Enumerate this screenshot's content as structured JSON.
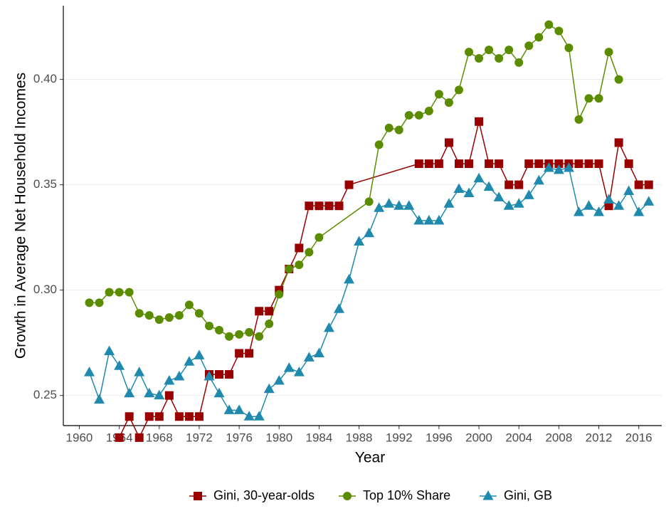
{
  "chart_data": {
    "type": "line",
    "x_label": "Year",
    "y_label": "Growth in Average Net Household Incomes",
    "xlim": [
      1958.4,
      2018.3
    ],
    "xticks": [
      1960,
      1964,
      1968,
      1972,
      1976,
      1980,
      1984,
      1988,
      1992,
      1996,
      2000,
      2004,
      2008,
      2012,
      2016
    ],
    "ylim": [
      0.2357,
      0.435
    ],
    "yticks": [
      0.25,
      {
        "value": 0.3,
        "label": "0.30"
      },
      0.35,
      {
        "value": 0.4,
        "label": "0.40"
      }
    ],
    "grid": true,
    "legend": "bottom",
    "series": [
      {
        "name": "Gini, 30-year-olds",
        "color": "#990000",
        "marker": "square",
        "x": [
          1964,
          1965,
          1966,
          1967,
          1968,
          1969,
          1970,
          1971,
          1972,
          1973,
          1974,
          1975,
          1976,
          1977,
          1978,
          1979,
          1980,
          1981,
          1982,
          1983,
          1984,
          1985,
          1986,
          1987,
          1994,
          1995,
          1996,
          1997,
          1998,
          1999,
          2000,
          2001,
          2002,
          2003,
          2004,
          2005,
          2006,
          2007,
          2008,
          2009,
          2010,
          2011,
          2012,
          2013,
          2014,
          2015,
          2016,
          2017
        ],
        "values": [
          0.23,
          0.24,
          0.23,
          0.24,
          0.24,
          0.25,
          0.24,
          0.24,
          0.24,
          0.26,
          0.26,
          0.26,
          0.27,
          0.27,
          0.29,
          0.29,
          0.3,
          0.31,
          0.32,
          0.34,
          0.34,
          0.34,
          0.34,
          0.35,
          0.36,
          0.36,
          0.36,
          0.37,
          0.36,
          0.36,
          0.38,
          0.36,
          0.36,
          0.35,
          0.35,
          0.36,
          0.36,
          0.36,
          0.36,
          0.36,
          0.36,
          0.36,
          0.36,
          0.34,
          0.37,
          0.36,
          0.35,
          0.35
        ]
      },
      {
        "name": "Top 10% Share",
        "color": "#5b8c00",
        "marker": "circle",
        "x": [
          1961,
          1962,
          1963,
          1964,
          1965,
          1966,
          1967,
          1968,
          1969,
          1970,
          1971,
          1972,
          1973,
          1974,
          1975,
          1976,
          1977,
          1978,
          1979,
          1980,
          1981,
          1982,
          1983,
          1984,
          1989,
          1990,
          1991,
          1992,
          1993,
          1994,
          1995,
          1996,
          1997,
          1998,
          1999,
          2000,
          2001,
          2002,
          2003,
          2004,
          2005,
          2006,
          2007,
          2008,
          2009,
          2010,
          2011,
          2012,
          2013,
          2014
        ],
        "values": [
          0.294,
          0.294,
          0.299,
          0.299,
          0.299,
          0.289,
          0.288,
          0.286,
          0.287,
          0.288,
          0.293,
          0.289,
          0.283,
          0.281,
          0.278,
          0.279,
          0.28,
          0.278,
          0.284,
          0.298,
          0.31,
          0.312,
          0.318,
          0.325,
          0.342,
          0.369,
          0.377,
          0.376,
          0.383,
          0.383,
          0.385,
          0.393,
          0.389,
          0.395,
          0.413,
          0.41,
          0.414,
          0.41,
          0.414,
          0.408,
          0.416,
          0.42,
          0.426,
          0.423,
          0.415,
          0.381,
          0.391,
          0.391,
          0.413,
          0.4
        ]
      },
      {
        "name": "Gini, GB",
        "color": "#1f8aad",
        "marker": "triangle",
        "x": [
          1961,
          1962,
          1963,
          1964,
          1965,
          1966,
          1967,
          1968,
          1969,
          1970,
          1971,
          1972,
          1973,
          1974,
          1975,
          1976,
          1977,
          1978,
          1979,
          1980,
          1981,
          1982,
          1983,
          1984,
          1985,
          1986,
          1987,
          1988,
          1989,
          1990,
          1991,
          1992,
          1993,
          1994,
          1995,
          1996,
          1997,
          1998,
          1999,
          2000,
          2001,
          2002,
          2003,
          2004,
          2005,
          2006,
          2007,
          2008,
          2009,
          2010,
          2011,
          2012,
          2013,
          2014,
          2015,
          2016,
          2017
        ],
        "values": [
          0.261,
          0.248,
          0.271,
          0.264,
          0.251,
          0.261,
          0.251,
          0.25,
          0.257,
          0.259,
          0.266,
          0.269,
          0.259,
          0.251,
          0.243,
          0.243,
          0.24,
          0.24,
          0.253,
          0.257,
          0.263,
          0.261,
          0.268,
          0.27,
          0.282,
          0.291,
          0.305,
          0.323,
          0.327,
          0.339,
          0.341,
          0.34,
          0.34,
          0.333,
          0.333,
          0.333,
          0.341,
          0.348,
          0.346,
          0.353,
          0.349,
          0.344,
          0.34,
          0.341,
          0.345,
          0.352,
          0.358,
          0.357,
          0.358,
          0.337,
          0.34,
          0.337,
          0.343,
          0.34,
          0.347,
          0.337,
          0.342
        ]
      }
    ]
  }
}
